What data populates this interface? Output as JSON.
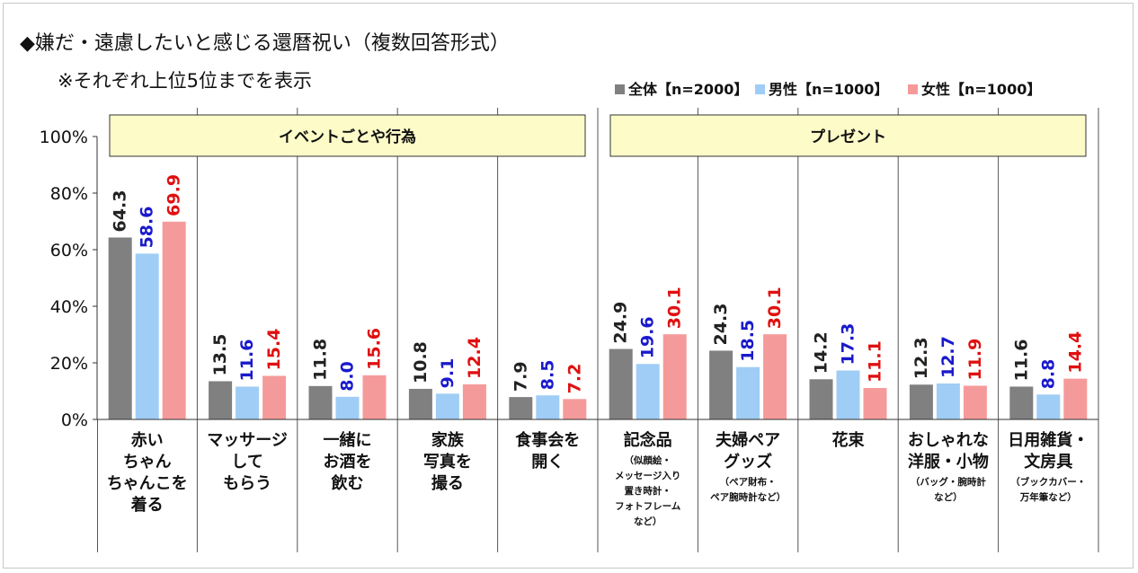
{
  "title": "◆嫌だ・遠慮したいと感じる還暦祝い（複数回答形式）",
  "note": "※それぞれ上位5位までを表示",
  "chart_data": {
    "type": "bar",
    "ylim": [
      0,
      100
    ],
    "y_ticks": [
      "0%",
      "20%",
      "40%",
      "60%",
      "80%",
      "100%"
    ],
    "legend_position": "top-right",
    "group_headers": [
      {
        "label": "イベントごとや行為",
        "span": [
          0,
          4
        ]
      },
      {
        "label": "プレゼント",
        "span": [
          5,
          9
        ]
      }
    ],
    "categories": [
      {
        "lines": [
          "赤い",
          "ちゃん",
          "ちゃんこを",
          "着る"
        ],
        "note": []
      },
      {
        "lines": [
          "マッサージ",
          "して",
          "もらう"
        ],
        "note": []
      },
      {
        "lines": [
          "一緒に",
          "お酒を",
          "飲む"
        ],
        "note": []
      },
      {
        "lines": [
          "家族",
          "写真を",
          "撮る"
        ],
        "note": []
      },
      {
        "lines": [
          "食事会を",
          "開く"
        ],
        "note": []
      },
      {
        "lines": [
          "記念品"
        ],
        "note": [
          "（似顔絵・",
          "メッセージ入り",
          "置き時計・",
          "フォトフレーム",
          "など）"
        ]
      },
      {
        "lines": [
          "夫婦ペア",
          "グッズ"
        ],
        "note": [
          "（ペア財布・",
          "ペア腕時計など）"
        ]
      },
      {
        "lines": [
          "花束"
        ],
        "note": []
      },
      {
        "lines": [
          "おしゃれな",
          "洋服・小物"
        ],
        "note": [
          "（バッグ・腕時計",
          "など）"
        ]
      },
      {
        "lines": [
          "日用雑貨・",
          "文房具"
        ],
        "note": [
          "（ブックカバー・",
          "万年筆など）"
        ]
      }
    ],
    "series": [
      {
        "name": "全体【n=2000】",
        "color": "#808080",
        "label_color": "#222222",
        "values": [
          64.3,
          13.5,
          11.8,
          10.8,
          7.9,
          24.9,
          24.3,
          14.2,
          12.3,
          11.6
        ],
        "labels": [
          "64.3",
          "13.5",
          "11.8",
          "10.8",
          "7.9",
          "24.9",
          "24.3",
          "14.2",
          "12.3",
          "11.6"
        ]
      },
      {
        "name": "男性【n=1000】",
        "color": "#9fcdf6",
        "label_color": "#1a1acc",
        "values": [
          58.6,
          11.6,
          8.0,
          9.1,
          8.5,
          19.6,
          18.5,
          17.3,
          12.7,
          8.8
        ],
        "labels": [
          "58.6",
          "11.6",
          "8.0",
          "9.1",
          "8.5",
          "19.6",
          "18.5",
          "17.3",
          "12.7",
          "8.8"
        ]
      },
      {
        "name": "女性【n=1000】",
        "color": "#f59a9a",
        "label_color": "#e01010",
        "values": [
          69.9,
          15.4,
          15.6,
          12.4,
          7.2,
          30.1,
          30.1,
          11.1,
          11.9,
          14.4
        ],
        "labels": [
          "69.9",
          "15.4",
          "15.6",
          "12.4",
          "7.2",
          "30.1",
          "30.1",
          "11.1",
          "11.9",
          "14.4"
        ]
      }
    ]
  }
}
